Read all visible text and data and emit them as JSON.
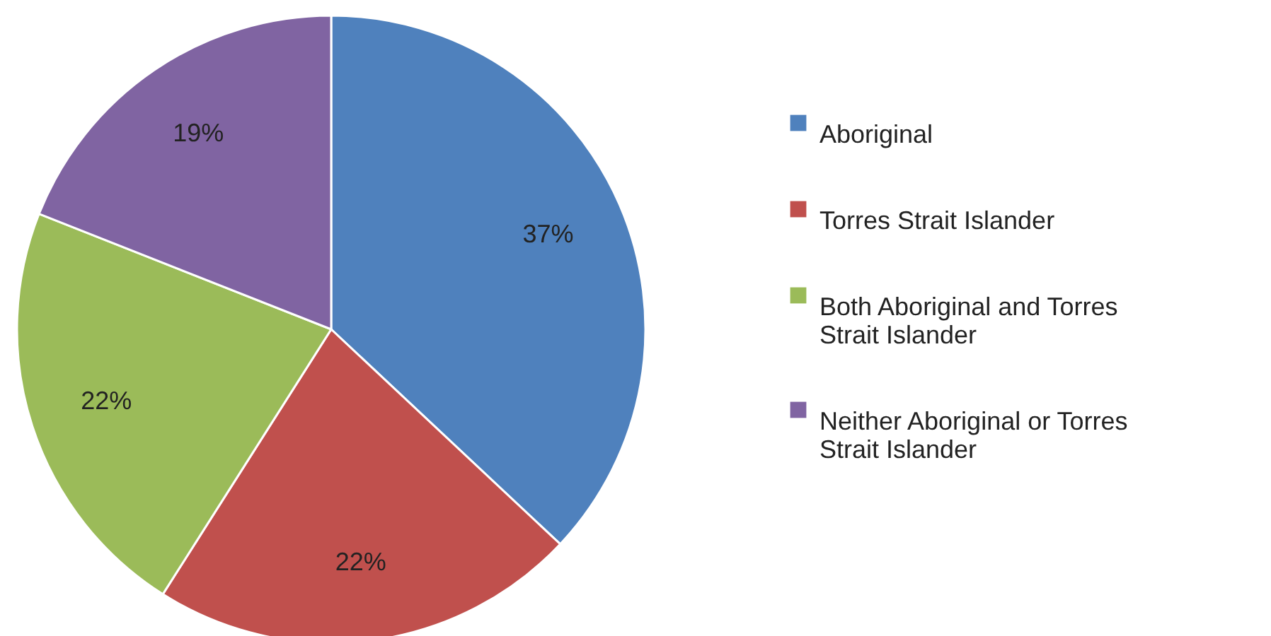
{
  "chart_data": {
    "type": "pie",
    "categories": [
      "Aboriginal",
      "Torres Strait Islander",
      "Both Aboriginal and Torres Strait Islander",
      "Neither Aboriginal or Torres Strait Islander"
    ],
    "values": [
      37,
      22,
      22,
      19
    ],
    "value_labels": [
      "37%",
      "22%",
      "22%",
      "19%"
    ],
    "colors": [
      "#4f81bd",
      "#c0504d",
      "#9bbb59",
      "#8064a2"
    ],
    "legend": "right"
  }
}
